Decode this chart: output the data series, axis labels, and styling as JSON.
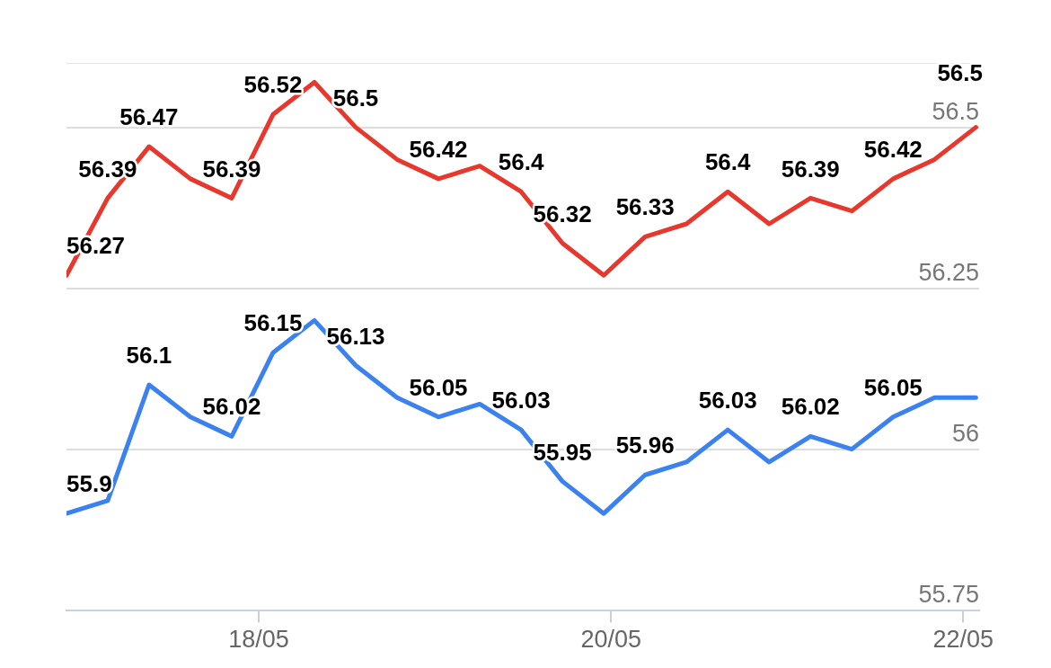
{
  "chart_data": {
    "type": "line",
    "x": [
      "--05-16T21:48",
      "--05-17T03:25",
      "--05-17T09:03",
      "--05-17T14:41",
      "--05-17T20:19",
      "--05-18T01:57",
      "--05-18T07:35",
      "--05-18T13:13",
      "--05-18T18:51",
      "--05-19T00:29",
      "--05-19T06:07",
      "--05-19T11:45",
      "--05-19T17:23",
      "--05-19T23:01",
      "--05-20T04:39",
      "--05-20T10:17",
      "--05-20T15:55",
      "--05-20T21:33",
      "--05-21T03:11",
      "--05-21T08:49",
      "--05-21T14:27",
      "--05-21T20:05",
      "--05-22T01:43"
    ],
    "series": [
      {
        "color": "#e8372c",
        "values": [
          56.27,
          56.39,
          56.47,
          56.42,
          56.39,
          56.52,
          56.57,
          56.5,
          56.45,
          56.42,
          56.44,
          56.4,
          56.32,
          56.27,
          56.33,
          56.35,
          56.4,
          56.35,
          56.39,
          56.37,
          56.42,
          56.45,
          56.5
        ],
        "value_labels": [
          "56.27",
          "56.39",
          "56.47",
          null,
          "56.39",
          "56.52",
          null,
          "56.5",
          null,
          "56.42",
          null,
          "56.4",
          "56.32",
          null,
          "56.33",
          null,
          "56.4",
          null,
          "56.39",
          null,
          "56.42",
          null,
          "56.5"
        ]
      },
      {
        "color": "#3b82f0",
        "values": [
          55.9,
          55.92,
          56.1,
          56.05,
          56.02,
          56.15,
          56.2,
          56.13,
          56.08,
          56.05,
          56.07,
          56.03,
          55.95,
          55.9,
          55.96,
          55.98,
          56.03,
          55.98,
          56.02,
          56.0,
          56.05,
          56.08,
          56.08
        ],
        "value_labels": [
          "55.9",
          null,
          "56.1",
          null,
          "56.02",
          "56.15",
          null,
          "56.13",
          null,
          "56.05",
          null,
          "56.03",
          "55.95",
          null,
          "55.96",
          null,
          "56.03",
          null,
          "56.02",
          null,
          "56.05",
          null,
          null
        ]
      }
    ],
    "xlim": [
      "--05-16T21:48",
      "--05-22T02:10"
    ],
    "xticks": [
      {
        "value": "--05-18",
        "label": "18/05"
      },
      {
        "value": "--05-20",
        "label": "20/05"
      },
      {
        "value": "--05-22",
        "label": "22/05"
      }
    ],
    "ylim": [
      55.75,
      56.6
    ],
    "yticks": [
      55.75,
      56,
      56.25,
      56.5
    ],
    "grid": "y",
    "legend": false,
    "marker": "none",
    "line_style": "solid"
  }
}
